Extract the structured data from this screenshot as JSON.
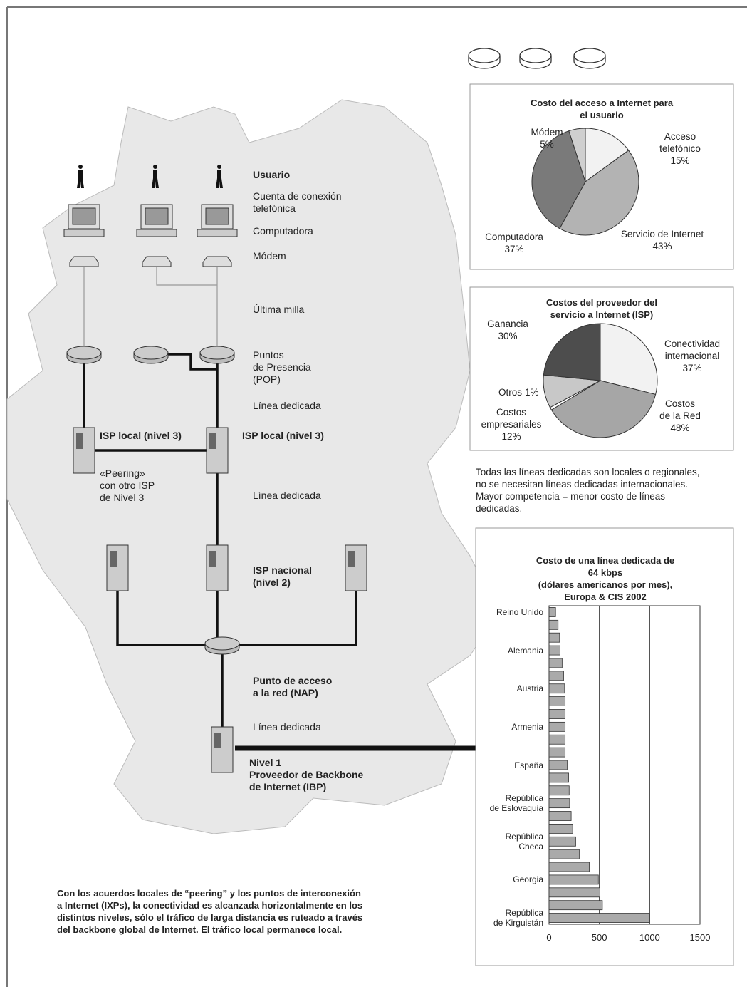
{
  "diagram": {
    "labels": [
      {
        "text": "Usuario"
      },
      {
        "text": "Cuenta de conexión\ntelefónica"
      },
      {
        "text": "Computadora"
      },
      {
        "text": "Módem"
      },
      {
        "text": "Última milla"
      },
      {
        "text": "Puntos\nde Presencia\n(POP)"
      },
      {
        "text": "Línea dedicada"
      },
      {
        "text": "ISP local (nivel 3)"
      },
      {
        "text": "ISP local (nivel 3)"
      },
      {
        "text": "«Peering»\ncon otro ISP\nde Nivel 3"
      },
      {
        "text": "Línea dedicada"
      },
      {
        "text": "ISP nacional\n(nivel 2)"
      },
      {
        "text": "Punto de acceso\na la red (NAP)"
      },
      {
        "text": "Línea dedicada"
      },
      {
        "text": "Nivel 1\nProveedor de Backbone\nde Internet (IBP)"
      }
    ],
    "note": "Todas las líneas dedicadas son locales o regionales,\nno se necesitan líneas dedicadas internacionales.\nMayor competencia = menor costo de líneas\ndedicadas.",
    "footer": "Con los acuerdos locales de “peering” y los puntos de interconexión\na Internet (IXPs), la conectividad es alcanzada horizontalmente en los\ndistintos niveles, sólo el tráfico de larga distancia es ruteado a través\ndel backbone global de Internet. El tráfico local permanece local."
  },
  "chart_data": [
    {
      "type": "pie",
      "title": "Costo del acceso a Internet para el usuario",
      "categories": [
        "Acceso telefónico",
        "Servicio de Internet",
        "Computadora",
        "Módem"
      ],
      "values": [
        15,
        43,
        37,
        5
      ],
      "value_labels": [
        "15%",
        "43%",
        "37%",
        "5%"
      ],
      "colors": [
        "#f2f2f2",
        "#b3b3b3",
        "#7a7a7a",
        "#cfcfcf"
      ]
    },
    {
      "type": "pie",
      "title": "Costos del proveedor del servicio a Internet (ISP)",
      "categories": [
        "Conectividad\ninternacional",
        "Costos\nde la Red",
        "Otros",
        "Costos\nempresariales",
        "Ganancia"
      ],
      "values": [
        37,
        48,
        1,
        12,
        30
      ],
      "value_labels": [
        "37%",
        "48%",
        "1%",
        "12%",
        "30%"
      ],
      "colors": [
        "#f2f2f2",
        "#a6a6a6",
        "#ffffff",
        "#c8c8c8",
        "#4d4d4d"
      ]
    },
    {
      "type": "bar",
      "orientation": "horizontal",
      "title": "Costo de una línea dedicada de 64 kbps\n(dólares americanos por mes),\nEuropa & CIS 2002",
      "categories": [
        "Reino Unido",
        null,
        null,
        "Alemania",
        null,
        null,
        "Austria",
        null,
        null,
        "Armenia",
        null,
        null,
        "España",
        null,
        null,
        "República\nde Eslovaquia",
        null,
        null,
        "República\nCheca",
        null,
        null,
        "Georgia",
        null,
        null,
        "República\nde Kirguistán"
      ],
      "values": [
        65,
        90,
        105,
        110,
        130,
        145,
        155,
        160,
        160,
        160,
        160,
        160,
        180,
        195,
        200,
        205,
        220,
        235,
        265,
        300,
        400,
        490,
        505,
        530,
        1000
      ],
      "color": "#aaaaaa",
      "xlim": [
        0,
        1500
      ],
      "xticks": [
        0,
        500,
        1000,
        1500
      ],
      "grid": true
    }
  ]
}
